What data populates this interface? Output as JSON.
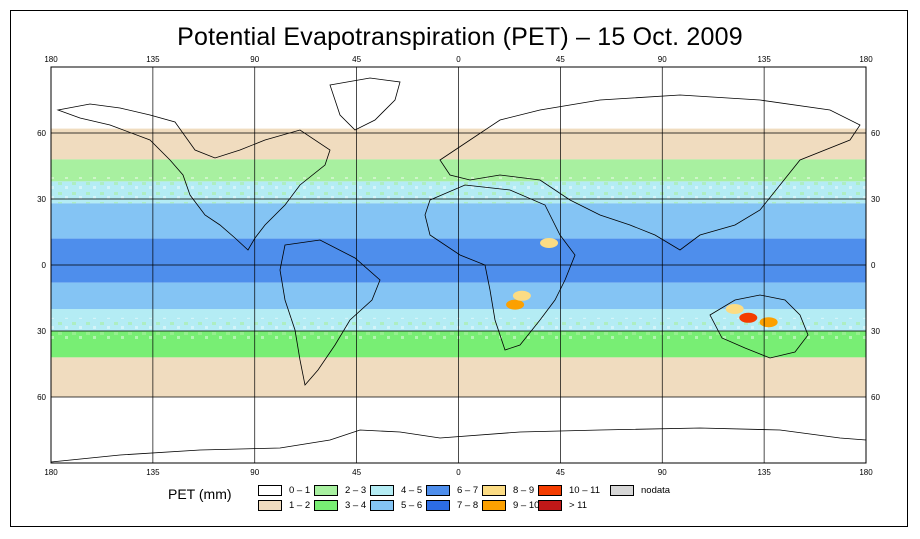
{
  "title": "Potential Evapotranspiration (PET) – 15 Oct. 2009",
  "map": {
    "lon_ticks": [
      "180",
      "135",
      "90",
      "45",
      "0",
      "45",
      "90",
      "135",
      "180"
    ],
    "lat_ticks": [
      "60",
      "30",
      "0",
      "30",
      "60"
    ],
    "lon_values": [
      -180,
      -135,
      -90,
      -45,
      0,
      45,
      90,
      135,
      180
    ],
    "lat_values": [
      60,
      30,
      0,
      -30,
      -60
    ],
    "ocean_color": "#ffffff",
    "land_outline_color": "#000000"
  },
  "legend": {
    "title": "PET (mm)",
    "items": [
      {
        "label": "0 – 1",
        "color": "#ffffff"
      },
      {
        "label": "1 – 2",
        "color": "#f0dcbf"
      },
      {
        "label": "2 – 3",
        "color": "#a8f0a0"
      },
      {
        "label": "3 – 4",
        "color": "#78ee74"
      },
      {
        "label": "4 – 5",
        "color": "#b4ecf4"
      },
      {
        "label": "5 – 6",
        "color": "#84c4f4"
      },
      {
        "label": "6 – 7",
        "color": "#4e8eec"
      },
      {
        "label": "7 – 8",
        "color": "#2c6ce4"
      },
      {
        "label": "8 – 9",
        "color": "#fcdc84"
      },
      {
        "label": "9 – 10",
        "color": "#fca000"
      },
      {
        "label": "10 – 11",
        "color": "#f43c00"
      },
      {
        "label": "> 11",
        "color": "#c01818"
      },
      {
        "label": "nodata",
        "color": "#d6d6d6"
      }
    ]
  },
  "bands": [
    {
      "lat_top": 90,
      "lat_bottom": 62,
      "class": "0 – 1",
      "color": "#ffffff"
    },
    {
      "lat_top": 62,
      "lat_bottom": 48,
      "class": "1 – 2",
      "color": "#f0dcbf"
    },
    {
      "lat_top": 48,
      "lat_bottom": 38,
      "class": "2 – 3",
      "color": "#a8f0a0"
    },
    {
      "lat_top": 38,
      "lat_bottom": 28,
      "class": "4 – 5",
      "color": "#b4ecf4"
    },
    {
      "lat_top": 28,
      "lat_bottom": 12,
      "class": "5 – 6",
      "color": "#84c4f4"
    },
    {
      "lat_top": 12,
      "lat_bottom": -8,
      "class": "6 – 7",
      "color": "#4e8eec"
    },
    {
      "lat_top": -8,
      "lat_bottom": -20,
      "class": "5 – 6",
      "color": "#84c4f4"
    },
    {
      "lat_top": -20,
      "lat_bottom": -30,
      "class": "4 – 5",
      "color": "#b4ecf4"
    },
    {
      "lat_top": -30,
      "lat_bottom": -42,
      "class": "3 – 4",
      "color": "#78ee74"
    },
    {
      "lat_top": -42,
      "lat_bottom": -60,
      "class": "1 – 2",
      "color": "#f0dcbf"
    },
    {
      "lat_top": -60,
      "lat_bottom": -90,
      "class": "0 – 1",
      "color": "#ffffff"
    }
  ],
  "hotspots": [
    {
      "region": "Australia interior",
      "lon": 128,
      "lat": -24,
      "class": "10 – 11",
      "color": "#f43c00"
    },
    {
      "region": "Australia east",
      "lon": 137,
      "lat": -26,
      "class": "9 – 10",
      "color": "#fca000"
    },
    {
      "region": "Australia north",
      "lon": 122,
      "lat": -20,
      "class": "8 – 9",
      "color": "#fcdc84"
    },
    {
      "region": "Southern Africa",
      "lon": 25,
      "lat": -18,
      "class": "9 – 10",
      "color": "#fca000"
    },
    {
      "region": "Southern Africa north",
      "lon": 28,
      "lat": -14,
      "class": "8 – 9",
      "color": "#fcdc84"
    },
    {
      "region": "Sahel east",
      "lon": 40,
      "lat": 10,
      "class": "8 – 9",
      "color": "#fcdc84"
    }
  ]
}
